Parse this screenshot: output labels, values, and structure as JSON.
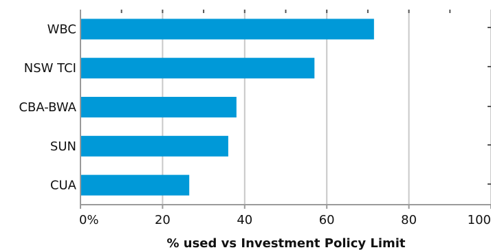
{
  "chart_data": {
    "type": "bar",
    "orientation": "horizontal",
    "categories": [
      "WBC",
      "NSW TCI",
      "CBA-BWA",
      "SUN",
      "CUA"
    ],
    "values": [
      71.5,
      57,
      38,
      36,
      26.5
    ],
    "xlabel": "% used vs Investment Policy Limit",
    "xlim": [
      0,
      100
    ],
    "x_ticks": [
      0,
      20,
      40,
      60,
      80,
      100
    ],
    "x_tick_labels": [
      "0%",
      "20",
      "40",
      "60",
      "80",
      "100"
    ],
    "grid": "vertical",
    "bar_color": "#0099d8",
    "grid_color": "#c8c8c8",
    "axis_color": "#9a9a9a"
  }
}
